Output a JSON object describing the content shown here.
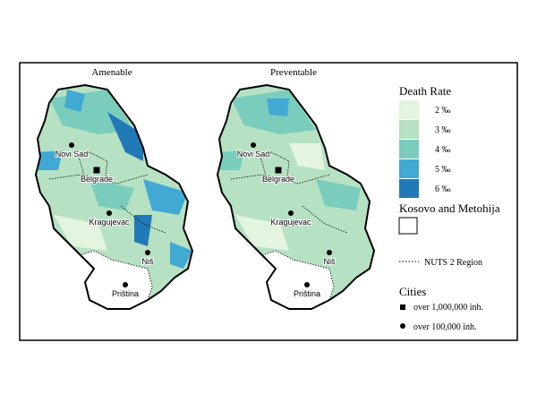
{
  "maps": [
    {
      "title": "Amenable",
      "cities": [
        "Novi Sad",
        "Belgrade",
        "Kragujevac",
        "Niš",
        "Priština"
      ]
    },
    {
      "title": "Preventable",
      "cities": [
        "Novi Sad",
        "Belgrade",
        "Kragujevac",
        "Niš",
        "Priština"
      ]
    }
  ],
  "legend": {
    "title": "Death Rate",
    "items": [
      {
        "label": "2 ‰",
        "color": "#e3f4df"
      },
      {
        "label": "3 ‰",
        "color": "#b7e1c3"
      },
      {
        "label": "4 ‰",
        "color": "#7acdbd"
      },
      {
        "label": "5 ‰",
        "color": "#41a9d3"
      },
      {
        "label": "6 ‰",
        "color": "#2279b8"
      }
    ],
    "kosovo": "Kosovo and Metohija",
    "nuts": "NUTS 2 Region",
    "cities_title": "Cities",
    "city_large": "over 1,000,000 inh.",
    "city_small": "over 100,000 inh."
  }
}
